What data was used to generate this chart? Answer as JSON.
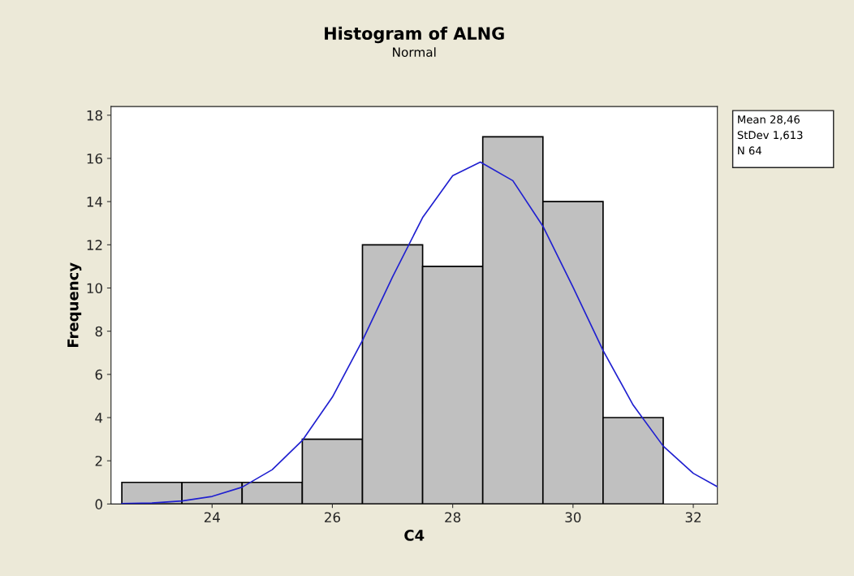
{
  "chart_data": {
    "type": "histogram",
    "title": "Histogram of ALNG",
    "subtitle": "Normal",
    "xlabel": "C4",
    "ylabel": "Frequency",
    "bins": [
      22.5,
      23.5,
      24.5,
      25.5,
      26.5,
      27.5,
      28.5,
      29.5,
      30.5,
      31.5
    ],
    "values": [
      1,
      1,
      1,
      3,
      12,
      11,
      17,
      14,
      4
    ],
    "color": "#c0c0c0",
    "series": [
      {
        "type": "line",
        "color": "#2020d0",
        "x": [
          22.5,
          23,
          23.5,
          24,
          24.5,
          25,
          25.5,
          26,
          26.5,
          27,
          27.5,
          28,
          28.46,
          29,
          29.5,
          30,
          30.5,
          31,
          31.5,
          32,
          32.4
        ],
        "values": [
          0.02,
          0.05,
          0.14,
          0.35,
          0.78,
          1.59,
          2.94,
          4.95,
          7.57,
          10.51,
          13.26,
          15.2,
          15.83,
          14.97,
          12.86,
          10.04,
          7.11,
          4.58,
          2.68,
          1.42,
          0.8
        ]
      }
    ],
    "xlim": [
      22.32,
      32.4
    ],
    "xticks": [
      24,
      26,
      28,
      30,
      32
    ],
    "ylim": [
      0,
      18.4
    ],
    "yticks": [
      0,
      2,
      4,
      6,
      8,
      10,
      12,
      14,
      16,
      18
    ],
    "annotations": [
      "Mean 28,46",
      "StDev 1,613",
      "N 64"
    ],
    "grid": false
  }
}
